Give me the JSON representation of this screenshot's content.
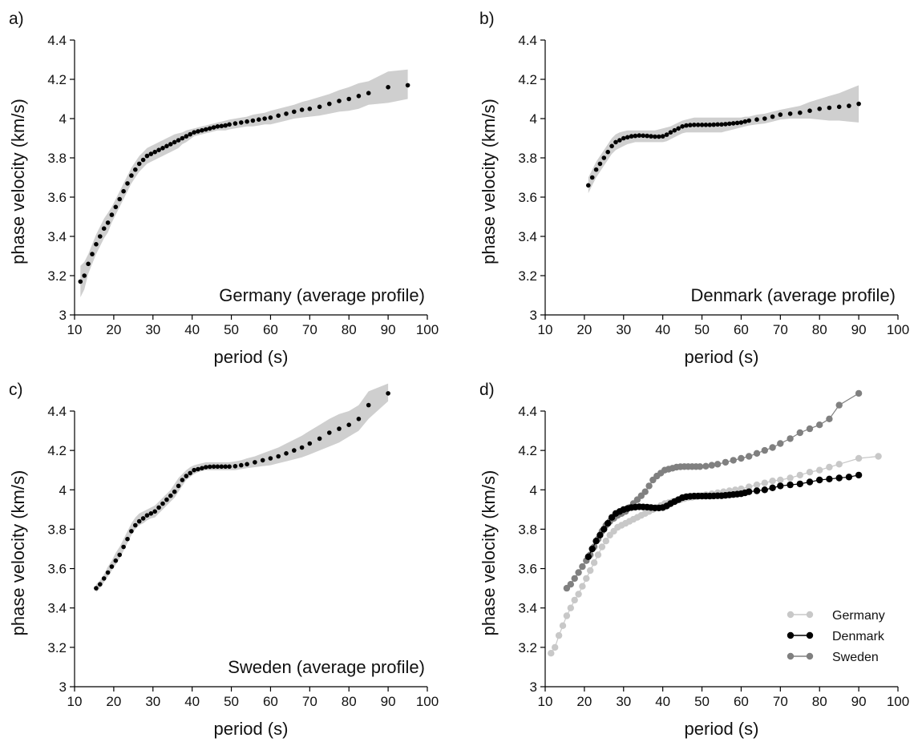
{
  "chart_data": [
    {
      "panel": "a)",
      "type": "scatter",
      "xlabel": "period (s)",
      "ylabel": "phase velocity (km/s)",
      "xlim": [
        10,
        100
      ],
      "ylim": [
        3.0,
        4.4
      ],
      "xticks": [
        10,
        20,
        30,
        40,
        50,
        60,
        70,
        80,
        90,
        100
      ],
      "yticks": [
        3.0,
        3.2,
        3.4,
        3.6,
        3.8,
        4.0,
        4.2,
        4.4
      ],
      "annotation": "Germany (average profile)",
      "x": [
        11.5,
        12.5,
        13.5,
        14.5,
        15.5,
        16.5,
        17.5,
        18.5,
        19.5,
        20.5,
        21.5,
        22.5,
        23.5,
        24.5,
        25.5,
        26.5,
        27.5,
        28.5,
        29.5,
        30.5,
        31.5,
        32.5,
        33.5,
        34.5,
        35.5,
        36.5,
        37.5,
        38.5,
        39.5,
        40.5,
        41.5,
        42.5,
        43.5,
        44.5,
        45.5,
        46.5,
        47.5,
        48.5,
        49.5,
        51,
        52.5,
        54,
        55.5,
        57,
        58.5,
        60,
        62,
        64,
        66,
        68,
        70,
        72.5,
        75,
        77.5,
        80,
        82.5,
        85,
        90,
        95
      ],
      "y": [
        3.17,
        3.2,
        3.26,
        3.31,
        3.36,
        3.4,
        3.44,
        3.47,
        3.51,
        3.55,
        3.59,
        3.63,
        3.67,
        3.71,
        3.74,
        3.77,
        3.79,
        3.81,
        3.82,
        3.83,
        3.84,
        3.85,
        3.86,
        3.87,
        3.88,
        3.89,
        3.9,
        3.91,
        3.92,
        3.93,
        3.935,
        3.94,
        3.945,
        3.95,
        3.955,
        3.96,
        3.962,
        3.965,
        3.97,
        3.975,
        3.98,
        3.985,
        3.99,
        3.995,
        4.0,
        4.005,
        4.015,
        4.025,
        4.035,
        4.045,
        4.05,
        4.06,
        4.075,
        4.09,
        4.1,
        4.115,
        4.13,
        4.16,
        4.17
      ],
      "band_upper": [
        3.25,
        3.27,
        3.31,
        3.36,
        3.41,
        3.45,
        3.49,
        3.52,
        3.55,
        3.59,
        3.63,
        3.67,
        3.71,
        3.75,
        3.78,
        3.81,
        3.83,
        3.85,
        3.86,
        3.87,
        3.88,
        3.89,
        3.9,
        3.91,
        3.92,
        3.925,
        3.93,
        3.94,
        3.945,
        3.95,
        3.955,
        3.96,
        3.965,
        3.97,
        3.975,
        3.98,
        3.985,
        3.99,
        3.995,
        4.0,
        4.005,
        4.01,
        4.02,
        4.025,
        4.03,
        4.04,
        4.05,
        4.06,
        4.07,
        4.085,
        4.095,
        4.11,
        4.125,
        4.145,
        4.16,
        4.18,
        4.19,
        4.24,
        4.25
      ],
      "band_lower": [
        3.09,
        3.13,
        3.21,
        3.26,
        3.31,
        3.35,
        3.39,
        3.42,
        3.47,
        3.51,
        3.55,
        3.59,
        3.63,
        3.67,
        3.7,
        3.73,
        3.75,
        3.77,
        3.78,
        3.79,
        3.8,
        3.81,
        3.82,
        3.83,
        3.84,
        3.85,
        3.87,
        3.88,
        3.895,
        3.91,
        3.915,
        3.92,
        3.925,
        3.93,
        3.935,
        3.94,
        3.94,
        3.94,
        3.945,
        3.95,
        3.955,
        3.96,
        3.96,
        3.965,
        3.97,
        3.97,
        3.98,
        3.99,
        4.0,
        4.005,
        4.01,
        4.015,
        4.025,
        4.035,
        4.04,
        4.05,
        4.07,
        4.08,
        4.1
      ]
    },
    {
      "panel": "b)",
      "type": "scatter",
      "xlabel": "period (s)",
      "ylabel": "phase velocity (km/s)",
      "xlim": [
        10,
        100
      ],
      "ylim": [
        3.0,
        4.4
      ],
      "xticks": [
        10,
        20,
        30,
        40,
        50,
        60,
        70,
        80,
        90,
        100
      ],
      "yticks": [
        3.0,
        3.2,
        3.4,
        3.6,
        3.8,
        4.0,
        4.2,
        4.4
      ],
      "annotation": "Denmark (average profile)",
      "x": [
        21,
        22,
        23,
        24,
        25,
        26,
        27,
        28,
        29,
        30,
        31,
        32,
        33,
        34,
        35,
        36,
        37,
        38,
        39,
        40,
        41,
        42,
        43,
        44,
        45,
        46,
        47,
        48,
        49,
        50,
        51,
        52,
        53,
        54,
        55,
        56,
        57,
        58,
        59,
        60,
        61,
        62,
        64,
        66,
        68,
        70,
        72.5,
        75,
        77.5,
        80,
        82.5,
        85,
        87.5,
        90
      ],
      "y": [
        3.66,
        3.7,
        3.74,
        3.77,
        3.8,
        3.83,
        3.86,
        3.88,
        3.89,
        3.9,
        3.905,
        3.91,
        3.912,
        3.914,
        3.913,
        3.912,
        3.91,
        3.908,
        3.908,
        3.91,
        3.918,
        3.93,
        3.94,
        3.95,
        3.96,
        3.965,
        3.967,
        3.968,
        3.968,
        3.968,
        3.968,
        3.968,
        3.969,
        3.97,
        3.97,
        3.972,
        3.974,
        3.976,
        3.978,
        3.98,
        3.985,
        3.99,
        3.995,
        4.0,
        4.01,
        4.02,
        4.025,
        4.03,
        4.04,
        4.05,
        4.055,
        4.06,
        4.065,
        4.075
      ],
      "band_upper": [
        3.7,
        3.74,
        3.78,
        3.81,
        3.84,
        3.87,
        3.9,
        3.92,
        3.93,
        3.935,
        3.94,
        3.94,
        3.94,
        3.94,
        3.94,
        3.94,
        3.94,
        3.94,
        3.945,
        3.95,
        3.955,
        3.96,
        3.97,
        3.98,
        3.99,
        3.995,
        4.0,
        4.005,
        4.005,
        4.005,
        4.005,
        4.005,
        4.005,
        4.005,
        4.005,
        4.005,
        4.005,
        4.005,
        4.005,
        4.005,
        4.01,
        4.01,
        4.02,
        4.025,
        4.035,
        4.045,
        4.055,
        4.065,
        4.085,
        4.1,
        4.115,
        4.13,
        4.15,
        4.17
      ],
      "band_lower": [
        3.62,
        3.66,
        3.7,
        3.73,
        3.76,
        3.79,
        3.82,
        3.84,
        3.85,
        3.86,
        3.87,
        3.875,
        3.88,
        3.88,
        3.88,
        3.88,
        3.88,
        3.88,
        3.88,
        3.88,
        3.885,
        3.895,
        3.905,
        3.915,
        3.925,
        3.93,
        3.93,
        3.93,
        3.93,
        3.93,
        3.93,
        3.93,
        3.93,
        3.93,
        3.93,
        3.935,
        3.94,
        3.945,
        3.95,
        3.955,
        3.96,
        3.965,
        3.97,
        3.975,
        3.985,
        3.995,
        4.0,
        4.0,
        4.0,
        3.995,
        3.99,
        3.99,
        3.985,
        3.98
      ]
    },
    {
      "panel": "c)",
      "type": "scatter",
      "xlabel": "period (s)",
      "ylabel": "phase velocity (km/s)",
      "xlim": [
        10,
        100
      ],
      "ylim": [
        3.0,
        4.4
      ],
      "xticks": [
        10,
        20,
        30,
        40,
        50,
        60,
        70,
        80,
        90,
        100
      ],
      "yticks": [
        3.0,
        3.2,
        3.4,
        3.6,
        3.8,
        4.0,
        4.2,
        4.4
      ],
      "annotation": "Sweden (average profile)",
      "x": [
        15.5,
        16.5,
        17.5,
        18.5,
        19.5,
        20.5,
        21.5,
        22.5,
        23.5,
        24.5,
        25.5,
        26.5,
        27.5,
        28.5,
        29.5,
        30.5,
        31.5,
        32.5,
        33.5,
        34.5,
        35.5,
        36.5,
        37.5,
        38.5,
        39.5,
        40.5,
        41.5,
        42.5,
        43.5,
        44.5,
        45.5,
        46.5,
        47.5,
        48.5,
        49.5,
        51,
        52.5,
        54,
        56,
        58,
        60,
        62,
        64,
        66,
        68,
        70,
        72.5,
        75,
        77.5,
        80,
        82.5,
        85,
        90
      ],
      "y": [
        3.5,
        3.52,
        3.55,
        3.58,
        3.61,
        3.64,
        3.67,
        3.71,
        3.75,
        3.79,
        3.82,
        3.84,
        3.855,
        3.87,
        3.88,
        3.89,
        3.91,
        3.93,
        3.95,
        3.97,
        3.99,
        4.02,
        4.05,
        4.07,
        4.085,
        4.1,
        4.105,
        4.11,
        4.115,
        4.117,
        4.118,
        4.118,
        4.118,
        4.118,
        4.118,
        4.12,
        4.125,
        4.13,
        4.14,
        4.15,
        4.16,
        4.17,
        4.185,
        4.2,
        4.215,
        4.235,
        4.26,
        4.29,
        4.31,
        4.33,
        4.36,
        4.43,
        4.49
      ],
      "band_upper": [
        3.52,
        3.54,
        3.57,
        3.61,
        3.64,
        3.68,
        3.71,
        3.75,
        3.79,
        3.83,
        3.86,
        3.88,
        3.89,
        3.9,
        3.91,
        3.92,
        3.94,
        3.96,
        3.98,
        4.0,
        4.03,
        4.06,
        4.08,
        4.1,
        4.115,
        4.125,
        4.13,
        4.135,
        4.14,
        4.14,
        4.14,
        4.14,
        4.14,
        4.14,
        4.14,
        4.145,
        4.15,
        4.16,
        4.17,
        4.185,
        4.2,
        4.215,
        4.235,
        4.255,
        4.275,
        4.3,
        4.33,
        4.36,
        4.385,
        4.4,
        4.43,
        4.5,
        4.54
      ],
      "band_lower": [
        3.48,
        3.5,
        3.53,
        3.56,
        3.59,
        3.62,
        3.65,
        3.69,
        3.73,
        3.77,
        3.8,
        3.82,
        3.83,
        3.845,
        3.855,
        3.86,
        3.88,
        3.9,
        3.92,
        3.94,
        3.96,
        3.99,
        4.02,
        4.05,
        4.065,
        4.08,
        4.09,
        4.095,
        4.1,
        4.1,
        4.1,
        4.1,
        4.1,
        4.1,
        4.1,
        4.1,
        4.105,
        4.11,
        4.115,
        4.12,
        4.125,
        4.135,
        4.145,
        4.155,
        4.165,
        4.18,
        4.2,
        4.22,
        4.24,
        4.27,
        4.3,
        4.36,
        4.45
      ]
    },
    {
      "panel": "d)",
      "type": "line",
      "xlabel": "period (s)",
      "ylabel": "phase velocity (km/s)",
      "xlim": [
        10,
        100
      ],
      "ylim": [
        3.0,
        4.4
      ],
      "xticks": [
        10,
        20,
        30,
        40,
        50,
        60,
        70,
        80,
        90,
        100
      ],
      "yticks": [
        3.0,
        3.2,
        3.4,
        3.6,
        3.8,
        4.0,
        4.2,
        4.4
      ],
      "legend_position": "bottom-right",
      "series": [
        {
          "name": "Germany",
          "color": "#c8c8c8",
          "ref": 0
        },
        {
          "name": "Denmark",
          "color": "#000000",
          "ref": 1
        },
        {
          "name": "Sweden",
          "color": "#808080",
          "ref": 2
        }
      ]
    }
  ]
}
